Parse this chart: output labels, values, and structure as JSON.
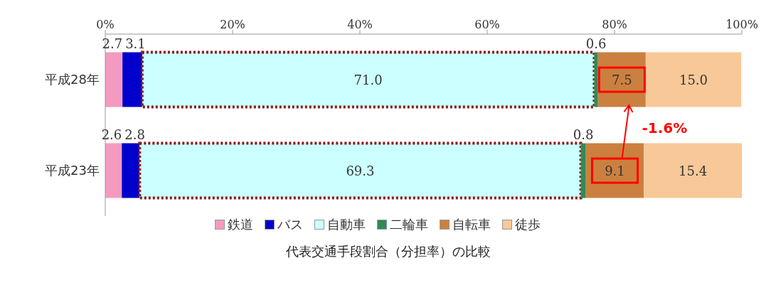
{
  "chart_data": {
    "type": "bar",
    "orientation": "horizontal",
    "stacked": true,
    "title": "代表交通手段割合（分担率）の比較",
    "categories": [
      "平成28年",
      "平成23年"
    ],
    "series": [
      {
        "name": "鉄道",
        "color": "#f49ac1",
        "values": [
          2.7,
          2.6
        ],
        "value_labels": [
          "2.7",
          "2.6"
        ]
      },
      {
        "name": "バス",
        "color": "#0000cc",
        "values": [
          3.1,
          2.8
        ],
        "value_labels": [
          "3.1",
          "2.8"
        ]
      },
      {
        "name": "自動車",
        "color": "#ccffff",
        "values": [
          71.0,
          69.3
        ],
        "value_labels": [
          "71.0",
          "69.3"
        ]
      },
      {
        "name": "二輪車",
        "color": "#2e8b57",
        "values": [
          0.6,
          0.8
        ],
        "value_labels": [
          "0.6",
          "0.8"
        ]
      },
      {
        "name": "自転車",
        "color": "#cc8040",
        "values": [
          7.5,
          9.1
        ],
        "value_labels": [
          "7.5",
          "9.1"
        ]
      },
      {
        "name": "徒歩",
        "color": "#f8c898",
        "values": [
          15.0,
          15.4
        ],
        "value_labels": [
          "15.0",
          "15.4"
        ]
      }
    ],
    "xlim": [
      0,
      100
    ],
    "xticks": [
      {
        "value": 0,
        "label": "0%"
      },
      {
        "value": 20,
        "label": "20%"
      },
      {
        "value": 40,
        "label": "40%"
      },
      {
        "value": 60,
        "label": "60%"
      },
      {
        "value": 80,
        "label": "80%"
      },
      {
        "value": 100,
        "label": "100%"
      }
    ],
    "legend": "bottom",
    "annotations": [
      "-1.6%"
    ]
  }
}
